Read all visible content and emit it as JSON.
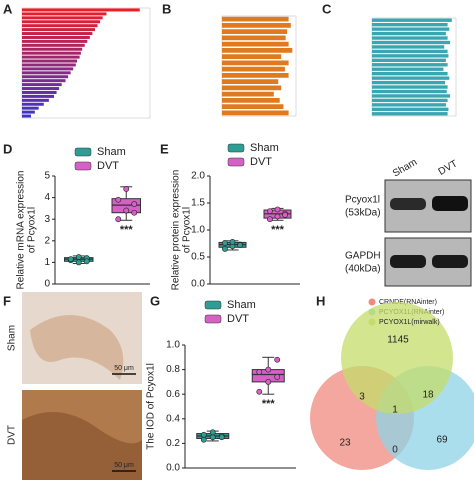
{
  "chart_data": [
    {
      "type": "hbar",
      "panel": "A",
      "categories": [
        null,
        null,
        null,
        null,
        null,
        null,
        null,
        null,
        null,
        null,
        null,
        null,
        null,
        null,
        null,
        null,
        null,
        null,
        null,
        null,
        null,
        null,
        null,
        null,
        null,
        null,
        null,
        null
      ],
      "values": [
        92,
        66,
        63,
        61,
        59,
        57,
        55,
        53,
        51,
        49,
        47,
        46,
        45,
        43,
        42,
        40,
        38,
        36,
        34,
        31,
        29,
        27,
        25,
        21,
        17,
        13,
        10,
        7
      ],
      "xlim": [
        0,
        100
      ],
      "color_range": [
        "#ee1c25",
        "#3c35c8"
      ]
    },
    {
      "type": "hbar",
      "panel": "B",
      "categories": [
        null,
        null,
        null,
        null,
        null,
        null,
        null,
        null,
        null,
        null,
        null,
        null,
        null,
        null,
        null,
        null
      ],
      "values": [
        0.9,
        0.93,
        0.88,
        0.86,
        0.9,
        0.95,
        0.8,
        0.9,
        0.85,
        0.9,
        0.76,
        0.8,
        0.7,
        0.78,
        0.83,
        0.9
      ],
      "xlim": [
        0,
        1
      ],
      "color": "#e07a1f"
    },
    {
      "type": "hbar",
      "panel": "C",
      "categories": [
        null,
        null,
        null,
        null,
        null,
        null,
        null,
        null,
        null,
        null,
        null,
        null,
        null,
        null,
        null,
        null,
        null,
        null,
        null,
        null,
        null,
        null
      ],
      "values": [
        0.95,
        0.9,
        0.92,
        0.88,
        0.9,
        0.93,
        0.86,
        0.9,
        0.91,
        0.88,
        0.9,
        0.85,
        0.9,
        0.92,
        0.87,
        0.9,
        0.89,
        0.93,
        0.9,
        0.88,
        0.91,
        0.9
      ],
      "xlim": [
        0,
        1
      ],
      "color": "#3aa6b4"
    },
    {
      "type": "box",
      "panel": "D",
      "ylabel": [
        "Relative mRNA expression",
        "of Pcyox1l"
      ],
      "ylim": [
        0,
        5
      ],
      "yticks": [
        0,
        1,
        2,
        3,
        4,
        5
      ],
      "annotation": "***",
      "series": [
        {
          "name": "Sham",
          "color": "#2e9e94",
          "whisker_low": 0.95,
          "q1": 1.05,
          "median": 1.15,
          "q3": 1.22,
          "whisker_high": 1.3,
          "points": [
            1.1,
            1.0,
            1.2,
            1.15,
            1.25,
            1.05
          ]
        },
        {
          "name": "DVT",
          "color": "#d660c6",
          "whisker_low": 2.95,
          "q1": 3.3,
          "median": 3.65,
          "q3": 3.95,
          "whisker_high": 4.5,
          "points": [
            3.0,
            3.4,
            3.7,
            3.9,
            4.4,
            3.3
          ]
        }
      ]
    },
    {
      "type": "box",
      "panel": "E",
      "ylabel": [
        "Relative protein expression",
        "of Pcyox1l"
      ],
      "ylim": [
        0,
        2
      ],
      "yticks": [
        {
          "value": 0,
          "label": "0.0"
        },
        {
          "value": 0.5,
          "label": "0.5"
        },
        {
          "value": 1,
          "label": "1.0"
        },
        {
          "value": 1.5,
          "label": "1.5"
        },
        {
          "value": 2,
          "label": "2.0"
        }
      ],
      "annotation": "***",
      "series": [
        {
          "name": "Sham",
          "color": "#2e9e94",
          "whisker_low": 0.63,
          "q1": 0.68,
          "median": 0.73,
          "q3": 0.77,
          "whisker_high": 0.8,
          "points": [
            0.65,
            0.7,
            0.73,
            0.76,
            0.78,
            0.72
          ]
        },
        {
          "name": "DVT",
          "color": "#d660c6",
          "whisker_low": 1.18,
          "q1": 1.22,
          "median": 1.3,
          "q3": 1.37,
          "whisker_high": 1.4,
          "points": [
            1.2,
            1.25,
            1.3,
            1.35,
            1.38,
            1.28
          ]
        }
      ]
    },
    {
      "type": "box",
      "panel": "G",
      "ylabel": [
        "The IOD of Pcyox1l"
      ],
      "ylim": [
        0,
        1
      ],
      "yticks": [
        {
          "value": 0,
          "label": "0.0"
        },
        {
          "value": 0.2,
          "label": "0.2"
        },
        {
          "value": 0.4,
          "label": "0.4"
        },
        {
          "value": 0.6,
          "label": "0.6"
        },
        {
          "value": 0.8,
          "label": "0.8"
        },
        {
          "value": 1,
          "label": "1.0"
        }
      ],
      "annotation": "***",
      "series": [
        {
          "name": "Sham",
          "color": "#2e9e94",
          "whisker_low": 0.22,
          "q1": 0.24,
          "median": 0.26,
          "q3": 0.28,
          "whisker_high": 0.3,
          "points": [
            0.23,
            0.25,
            0.26,
            0.27,
            0.29,
            0.25
          ]
        },
        {
          "name": "DVT",
          "color": "#d660c6",
          "whisker_low": 0.6,
          "q1": 0.7,
          "median": 0.76,
          "q3": 0.8,
          "whisker_high": 0.9,
          "points": [
            0.62,
            0.7,
            0.74,
            0.78,
            0.8,
            0.88
          ]
        }
      ]
    },
    {
      "type": "venn",
      "panel": "H",
      "sets": [
        {
          "name": "CRNDE(RNAinter)",
          "color": "#f08a7e"
        },
        {
          "name": "PCYOX1L(RNAinter)",
          "color": "#8fd3e6"
        },
        {
          "name": "PCYOX1L(mirwalk)",
          "color": "#c4dc6a"
        }
      ],
      "regions": [
        {
          "sets": [
            2
          ],
          "value": 1145
        },
        {
          "sets": [
            0,
            2
          ],
          "value": 3
        },
        {
          "sets": [
            1,
            2
          ],
          "value": 18
        },
        {
          "sets": [
            0,
            1,
            2
          ],
          "value": 1
        },
        {
          "sets": [
            0
          ],
          "value": 23
        },
        {
          "sets": [
            0,
            1
          ],
          "value": 0
        },
        {
          "sets": [
            1
          ],
          "value": 69
        }
      ]
    }
  ],
  "blot": {
    "columns": [
      "Sham",
      "DVT"
    ],
    "rows": [
      [
        "Pcyox1l",
        "(53kDa)"
      ],
      [
        "GAPDH",
        "(40kDa)"
      ]
    ]
  },
  "histology": {
    "panel": "F",
    "rows": [
      "Sham",
      "DVT"
    ],
    "scale": "50 μm"
  }
}
